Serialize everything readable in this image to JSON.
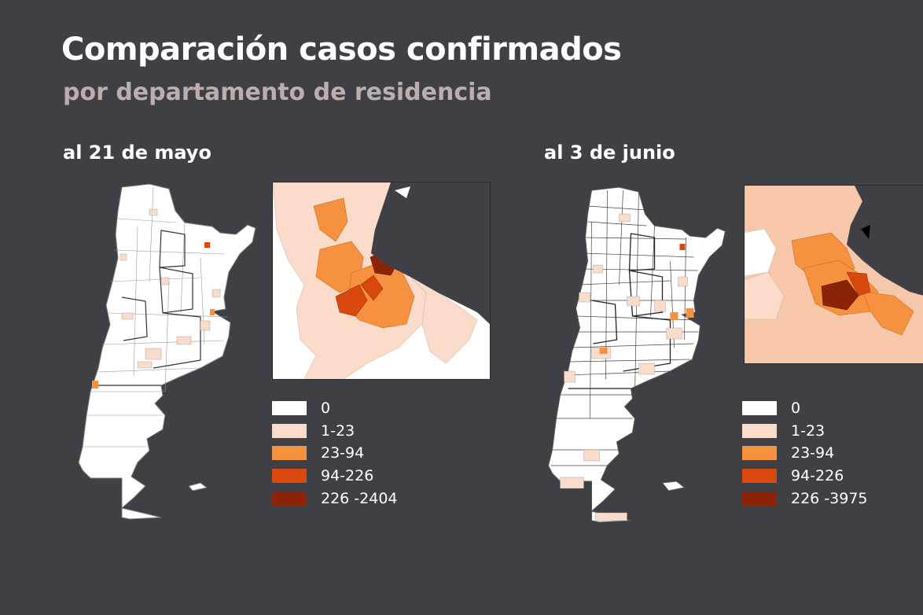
{
  "title": "Comparación casos confirmados",
  "subtitle": "por departamento de residencia",
  "panels": [
    {
      "label": "al 21 de mayo",
      "legend": [
        {
          "label": "0",
          "color": "#ffffff"
        },
        {
          "label": "1-23",
          "color": "#fbdccb"
        },
        {
          "label": "23-94",
          "color": "#f6923f"
        },
        {
          "label": "94-226",
          "color": "#d9480f"
        },
        {
          "label": "226 -2404",
          "color": "#8b2306"
        }
      ]
    },
    {
      "label": "al 3 de junio",
      "legend": [
        {
          "label": "0",
          "color": "#ffffff"
        },
        {
          "label": "1-23",
          "color": "#fbdccb"
        },
        {
          "label": "23-94",
          "color": "#f6923f"
        },
        {
          "label": "94-226",
          "color": "#d9480f"
        },
        {
          "label": "226 -3975",
          "color": "#8b2306"
        }
      ]
    }
  ],
  "colors": {
    "background": "#3f4045",
    "zero": "#ffffff",
    "low": "#fbdccb",
    "mid": "#f6923f",
    "high": "#d9480f",
    "top": "#8b2306"
  }
}
